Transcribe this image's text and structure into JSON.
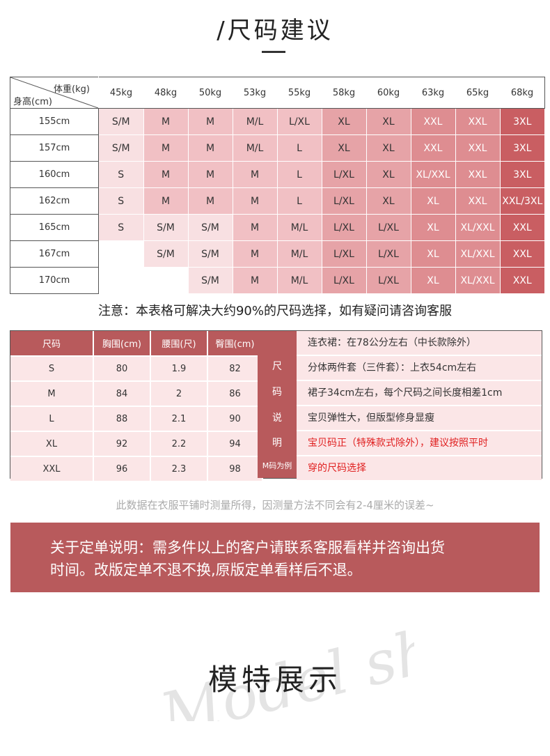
{
  "title": "/尺码建议",
  "size_table": {
    "corner_weight": "体重(kg)",
    "corner_height": "身高(cm)",
    "weights": [
      "45kg",
      "48kg",
      "50kg",
      "53kg",
      "55kg",
      "58kg",
      "60kg",
      "63kg",
      "65kg",
      "68kg"
    ],
    "rows": [
      {
        "height": "155cm",
        "sizes": [
          "S/M",
          "M",
          "M",
          "M/L",
          "L/XL",
          "XL",
          "XL",
          "XXL",
          "XXL",
          "3XL"
        ]
      },
      {
        "height": "157cm",
        "sizes": [
          "S/M",
          "M",
          "M",
          "M/L",
          "L",
          "XL",
          "XL",
          "XXL",
          "XXL",
          "3XL"
        ]
      },
      {
        "height": "160cm",
        "sizes": [
          "S",
          "M",
          "M",
          "M",
          "L",
          "L/XL",
          "XL",
          "XL/XXL",
          "XXL",
          "3XL"
        ]
      },
      {
        "height": "162cm",
        "sizes": [
          "S",
          "M",
          "M",
          "M",
          "L",
          "L/XL",
          "XL",
          "XL",
          "XXL",
          "XXL/3XL"
        ]
      },
      {
        "height": "165cm",
        "sizes": [
          "S",
          "S/M",
          "S/M",
          "M",
          "M/L",
          "L/XL",
          "L/XL",
          "XL",
          "XL/XXL",
          "XXL"
        ]
      },
      {
        "height": "167cm",
        "sizes": [
          "",
          "S/M",
          "S/M",
          "M",
          "M/L",
          "L/XL",
          "L/XL",
          "XL",
          "XL/XXL",
          "XXL"
        ]
      },
      {
        "height": "170cm",
        "sizes": [
          "",
          "",
          "S/M",
          "M",
          "M/L",
          "L/XL",
          "L/XL",
          "XL",
          "XL/XXL",
          "XXL"
        ]
      }
    ],
    "shade_levels": [
      [
        1,
        2,
        2,
        2,
        2,
        3,
        3,
        4,
        4,
        5
      ],
      [
        1,
        2,
        2,
        2,
        2,
        3,
        3,
        4,
        4,
        5
      ],
      [
        1,
        2,
        2,
        2,
        2,
        3,
        3,
        4,
        4,
        5
      ],
      [
        1,
        2,
        2,
        2,
        2,
        3,
        3,
        4,
        4,
        5
      ],
      [
        1,
        1,
        1,
        2,
        2,
        3,
        3,
        4,
        4,
        5
      ],
      [
        0,
        1,
        1,
        2,
        2,
        3,
        3,
        4,
        4,
        5
      ],
      [
        0,
        0,
        1,
        2,
        2,
        3,
        3,
        4,
        4,
        5
      ]
    ],
    "colors": [
      "#ffffff",
      "#f8e0e2",
      "#f1c0c4",
      "#e6a3a7",
      "#de8d91",
      "#c95e62"
    ]
  },
  "note": "注意：本表格可解决大约90%的尺码选择，如有疑问请咨询客服",
  "measure_table": {
    "headers": [
      "尺码",
      "胸围(cm)",
      "腰围(尺)",
      "臀围(cm)"
    ],
    "rows": [
      [
        "S",
        "80",
        "1.9",
        "82"
      ],
      [
        "M",
        "84",
        "2",
        "86"
      ],
      [
        "L",
        "88",
        "2.1",
        "90"
      ],
      [
        "XL",
        "92",
        "2.2",
        "94"
      ],
      [
        "XXL",
        "96",
        "2.3",
        "98"
      ]
    ],
    "side_label": [
      "尺",
      "码",
      "说",
      "明",
      "M码为例"
    ],
    "notes": [
      "连衣裙：在78公分左右（中长款除外）",
      "分体两件套（三件套）：上衣54cm左右",
      "裙子34cm左右，每个尺码之间长度相差1cm",
      "宝贝弹性大，但版型修身显瘦",
      "宝贝码正（特殊款式除外），建议按照平时",
      "穿的尺码选择"
    ],
    "accent": "#b85a5c",
    "note_red": "#e02020"
  },
  "disclaimer": "此数据在衣服平铺时测量所得，因测量方法不同会有2-4厘米的误差~",
  "banner": {
    "line1": "关于定单说明：需多件以上的客户请联系客服看样并咨询出货",
    "line2": "时间。改版定单不退不换,原版定单看样后不退。"
  },
  "watermark": "Model show",
  "section_title": "模特展示"
}
